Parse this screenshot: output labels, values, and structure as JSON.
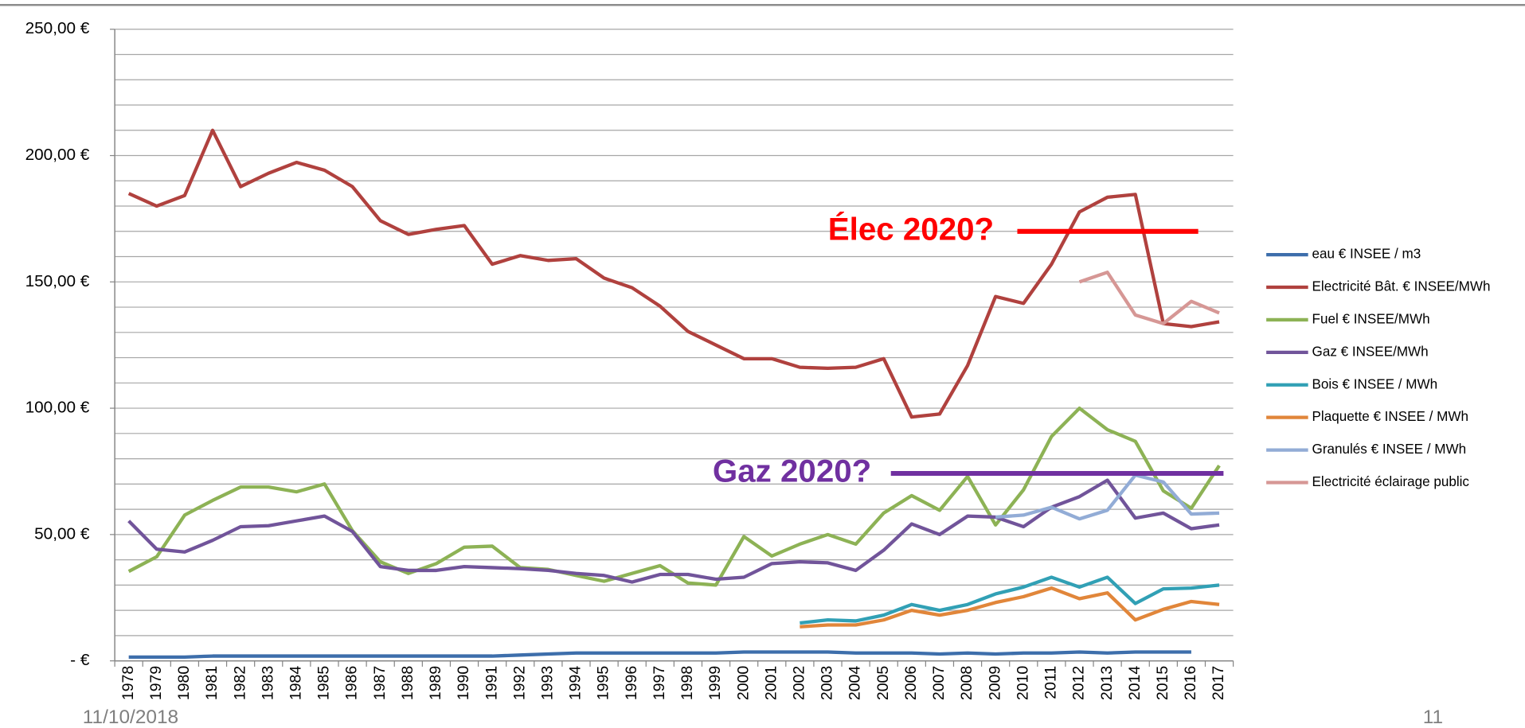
{
  "chart_data": {
    "type": "line",
    "categories": [
      "1978",
      "1979",
      "1980",
      "1981",
      "1982",
      "1983",
      "1984",
      "1985",
      "1986",
      "1987",
      "1988",
      "1989",
      "1990",
      "1991",
      "1992",
      "1993",
      "1994",
      "1995",
      "1996",
      "1997",
      "1998",
      "1999",
      "2000",
      "2001",
      "2002",
      "2003",
      "2004",
      "2005",
      "2006",
      "2007",
      "2008",
      "2009",
      "2010",
      "2011",
      "2012",
      "2013",
      "2014",
      "2015",
      "2016",
      "2017"
    ],
    "series": [
      {
        "name": "eau € INSEE / m3",
        "color": "#3d6eab",
        "values": [
          1.5,
          1.5,
          1.5,
          1.9,
          1.9,
          1.9,
          1.9,
          1.9,
          1.9,
          1.9,
          1.9,
          1.9,
          1.9,
          1.9,
          2.3,
          2.7,
          3.1,
          3.1,
          3.1,
          3.1,
          3.1,
          3.1,
          3.5,
          3.5,
          3.5,
          3.5,
          3.1,
          3.1,
          3.1,
          2.7,
          3.1,
          2.7,
          3.1,
          3.1,
          3.5,
          3.1,
          3.5,
          3.5,
          3.5,
          null
        ]
      },
      {
        "name": "Electricité Bât. € INSEE/MWh",
        "color": "#b0413e",
        "values": [
          185,
          180,
          184.2,
          210,
          187.7,
          193,
          197.3,
          194.2,
          187.7,
          174.2,
          168.8,
          170.8,
          172.3,
          157,
          160.4,
          158.5,
          159.2,
          151.5,
          147.7,
          140.4,
          130.4,
          125,
          119.6,
          119.6,
          116.2,
          115.8,
          116.2,
          119.6,
          96.5,
          97.7,
          116.9,
          144.2,
          141.5,
          157,
          177.7,
          183.5,
          184.6,
          133.5,
          132.3,
          134.2
        ]
      },
      {
        "name": "Fuel € INSEE/MWh",
        "color": "#8db255",
        "values": [
          35.4,
          41.2,
          57.7,
          63.5,
          68.8,
          68.8,
          66.9,
          70,
          51.5,
          39.2,
          34.6,
          38.5,
          45,
          45.4,
          36.9,
          36.2,
          33.8,
          31.5,
          34.6,
          37.7,
          30.8,
          30,
          49.2,
          41.5,
          46.2,
          50,
          46.2,
          58.5,
          65.4,
          59.6,
          73,
          53.8,
          67.7,
          88.8,
          100,
          91.5,
          86.9,
          67.3,
          60.4,
          77.3
        ]
      },
      {
        "name": "Gaz € INSEE/MWh",
        "color": "#71549a",
        "values": [
          55.4,
          44.2,
          43.1,
          47.7,
          53.1,
          53.5,
          55.4,
          57.3,
          51.2,
          37.3,
          35.8,
          35.8,
          37.3,
          36.9,
          36.5,
          35.8,
          34.6,
          33.8,
          31.2,
          34.2,
          34.2,
          32.3,
          33.1,
          38.5,
          39.2,
          38.8,
          35.8,
          43.8,
          54.2,
          50,
          57.3,
          56.9,
          53.1,
          60.8,
          65,
          71.5,
          56.5,
          58.5,
          52.3,
          53.8
        ]
      },
      {
        "name": "Bois € INSEE / MWh",
        "color": "#31a0b5",
        "values": [
          null,
          null,
          null,
          null,
          null,
          null,
          null,
          null,
          null,
          null,
          null,
          null,
          null,
          null,
          null,
          null,
          null,
          null,
          null,
          null,
          null,
          null,
          null,
          null,
          15,
          16.2,
          15.8,
          18.1,
          22.3,
          20,
          22.3,
          26.5,
          29.2,
          33.1,
          29.2,
          33.1,
          22.7,
          28.5,
          28.8,
          30
        ]
      },
      {
        "name": "Plaquette € INSEE / MWh",
        "color": "#e1863a",
        "values": [
          null,
          null,
          null,
          null,
          null,
          null,
          null,
          null,
          null,
          null,
          null,
          null,
          null,
          null,
          null,
          null,
          null,
          null,
          null,
          null,
          null,
          null,
          null,
          null,
          13.5,
          14.2,
          14.2,
          16.2,
          20,
          18.1,
          20,
          23.1,
          25.4,
          28.8,
          24.6,
          26.9,
          16.2,
          20.4,
          23.5,
          22.3
        ]
      },
      {
        "name": "Granulés € INSEE / MWh",
        "color": "#92acd6",
        "values": [
          null,
          null,
          null,
          null,
          null,
          null,
          null,
          null,
          null,
          null,
          null,
          null,
          null,
          null,
          null,
          null,
          null,
          null,
          null,
          null,
          null,
          null,
          null,
          null,
          null,
          null,
          null,
          null,
          null,
          null,
          null,
          56.9,
          57.7,
          60.8,
          56.2,
          59.6,
          73.5,
          70.8,
          58.1,
          58.5
        ]
      },
      {
        "name": "Electricité éclairage public",
        "color": "#d69795",
        "values": [
          null,
          null,
          null,
          null,
          null,
          null,
          null,
          null,
          null,
          null,
          null,
          null,
          null,
          null,
          null,
          null,
          null,
          null,
          null,
          null,
          null,
          null,
          null,
          null,
          null,
          null,
          null,
          null,
          null,
          null,
          null,
          null,
          null,
          null,
          150,
          153.8,
          136.9,
          133.5,
          142.3,
          137.7
        ]
      }
    ],
    "annotations": [
      {
        "text": "Élec 2020?",
        "value": 170,
        "color": "#ff0000"
      },
      {
        "text": "Gaz 2020?",
        "value": 74.2,
        "color": "#7030a0"
      }
    ],
    "ylim": [
      0,
      250
    ],
    "yticks": [
      {
        "value": 0,
        "label": "-   €"
      },
      {
        "value": 50,
        "label": "50,00 €"
      },
      {
        "value": 100,
        "label": "100,00 €"
      },
      {
        "value": 150,
        "label": "150,00 €"
      },
      {
        "value": 200,
        "label": "200,00 €"
      },
      {
        "value": 250,
        "label": "250,00 €"
      }
    ],
    "minor_yticks": [
      10,
      20,
      30,
      40,
      60,
      70,
      80,
      90,
      110,
      120,
      130,
      140,
      160,
      170,
      180,
      190,
      210,
      220,
      230,
      240
    ],
    "grid": true,
    "legend": "right"
  },
  "footer": {
    "date": "11/10/2018",
    "page": "11"
  }
}
